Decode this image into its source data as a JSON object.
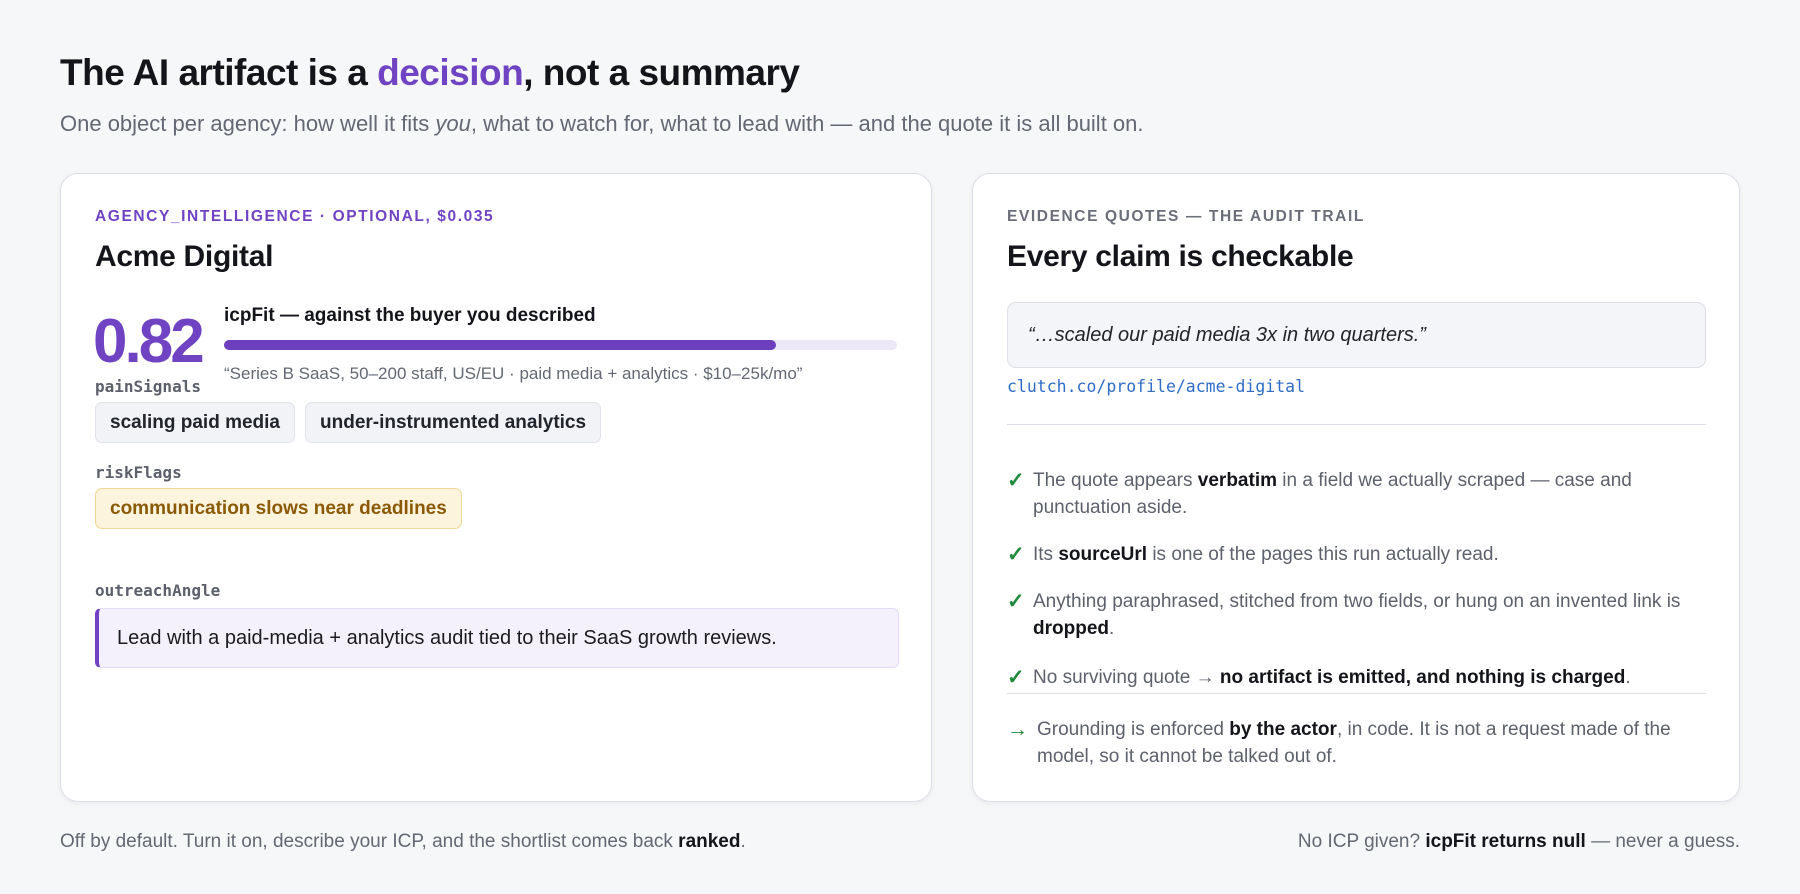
{
  "header": {
    "title_prefix": "The AI artifact is a ",
    "title_accent": "decision",
    "title_suffix": ", not a summary",
    "subtitle_prefix": "One object per agency: how well it fits ",
    "subtitle_em": "you",
    "subtitle_suffix": ", what to watch for, what to lead with — and the quote it is all built on."
  },
  "colors": {
    "accent": "#7043c3",
    "check_green": "#1f8a3b",
    "link_blue": "#2f6dc7",
    "warn_text": "#8b5a07"
  },
  "left_card": {
    "eyebrow": "AGENCY_INTELLIGENCE · OPTIONAL, $0.035",
    "title": "Acme Digital",
    "score": "0.82",
    "fit_value": 0.82,
    "fit_label": "icpFit — against the buyer you described",
    "fit_quote": "“Series B SaaS, 50–200 staff, US/EU · paid media + analytics · $10–25k/mo”",
    "pain_key": "painSignals",
    "pain_signals": [
      "scaling paid media",
      "under-instrumented analytics"
    ],
    "risk_key": "riskFlags",
    "risk_flags": [
      "communication slows near deadlines"
    ],
    "outreach_key": "outreachAngle",
    "outreach_angle": "Lead with a paid-media + analytics audit tied to their SaaS growth reviews."
  },
  "right_card": {
    "eyebrow": "EVIDENCE QUOTES — THE AUDIT TRAIL",
    "title": "Every claim is checkable",
    "quote": "“…scaled our paid media 3x in two quarters.”",
    "source_url": "clutch.co/profile/acme-digital",
    "checks": [
      {
        "pre": "The quote appears ",
        "bold": "verbatim",
        "post": " in a field we actually scraped — case and punctuation aside."
      },
      {
        "pre": "Its ",
        "bold": "sourceUrl",
        "post": " is one of the pages this run actually read."
      },
      {
        "pre": "Anything paraphrased, stitched from two fields, or hung on an invented link is ",
        "bold": "dropped",
        "post": "."
      },
      {
        "pre": "No surviving quote → ",
        "bold": "no artifact is emitted, and nothing is charged",
        "post": "."
      }
    ],
    "note": {
      "pre": "Grounding is enforced ",
      "bold": "by the actor",
      "post": ", in code. It is not a request made of the model, so it cannot be talked out of."
    }
  },
  "footer": {
    "left_pre": "Off by default. Turn it on, describe your ICP, and the shortlist comes back ",
    "left_bold": "ranked",
    "left_post": ".",
    "right_pre": "No ICP given? ",
    "right_bold": "icpFit returns null",
    "right_post": " — never a guess."
  }
}
